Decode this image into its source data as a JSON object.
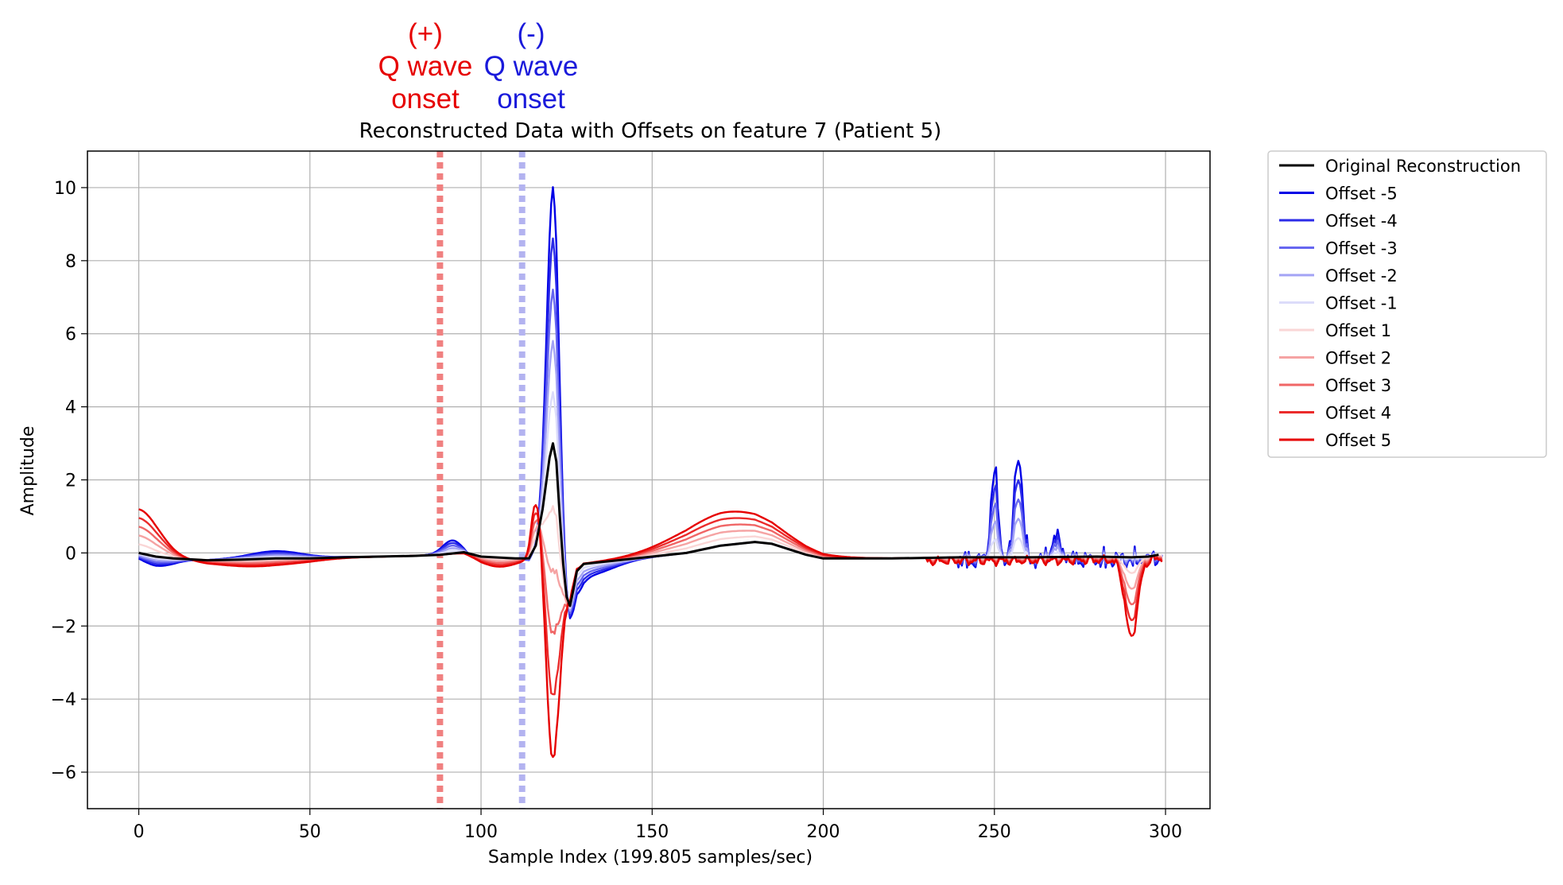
{
  "annotations": {
    "positive": {
      "sign": "(+)",
      "line1": "Q wave",
      "line2": "onset",
      "color": "#e60000"
    },
    "negative": {
      "sign": "(-)",
      "line1": "Q wave",
      "line2": "onset",
      "color": "#1a1adb"
    }
  },
  "chart_data": {
    "type": "line",
    "title": "Reconstructed Data with Offsets on feature 7 (Patient 5)",
    "xlabel": "Sample Index (199.805 samples/sec)",
    "ylabel": "Amplitude",
    "xlim": [
      -15,
      313
    ],
    "ylim": [
      -7,
      11
    ],
    "xticks": [
      0,
      50,
      100,
      150,
      200,
      250,
      300
    ],
    "yticks": [
      -6,
      -4,
      -2,
      0,
      2,
      4,
      6,
      8,
      10
    ],
    "ytick_labels": [
      "−6",
      "−4",
      "−2",
      "0",
      "2",
      "4",
      "6",
      "8",
      "10"
    ],
    "grid": true,
    "legend_position": "outside-right-top",
    "vlines": [
      {
        "x": 88,
        "color": "#f08080",
        "style": "dotted"
      },
      {
        "x": 112,
        "color": "#b3b3f0",
        "style": "dotted"
      }
    ],
    "series": [
      {
        "name": "Original Reconstruction",
        "color": "#000000",
        "offset": 0,
        "points": [
          [
            0,
            0
          ],
          [
            5,
            -0.1
          ],
          [
            10,
            -0.15
          ],
          [
            20,
            -0.2
          ],
          [
            30,
            -0.18
          ],
          [
            40,
            -0.15
          ],
          [
            50,
            -0.15
          ],
          [
            60,
            -0.12
          ],
          [
            70,
            -0.1
          ],
          [
            80,
            -0.08
          ],
          [
            88,
            -0.05
          ],
          [
            95,
            0.02
          ],
          [
            100,
            -0.1
          ],
          [
            110,
            -0.15
          ],
          [
            114,
            -0.15
          ],
          [
            116,
            0.2
          ],
          [
            118,
            1.2
          ],
          [
            120,
            2.6
          ],
          [
            121,
            3.0
          ],
          [
            122,
            2.5
          ],
          [
            123,
            1.0
          ],
          [
            124,
            -0.3
          ],
          [
            125,
            -1.2
          ],
          [
            126,
            -1.45
          ],
          [
            127,
            -1.0
          ],
          [
            128,
            -0.5
          ],
          [
            130,
            -0.3
          ],
          [
            135,
            -0.25
          ],
          [
            140,
            -0.2
          ],
          [
            150,
            -0.1
          ],
          [
            160,
            0
          ],
          [
            170,
            0.2
          ],
          [
            180,
            0.3
          ],
          [
            185,
            0.25
          ],
          [
            190,
            0.1
          ],
          [
            195,
            -0.05
          ],
          [
            200,
            -0.15
          ],
          [
            220,
            -0.15
          ],
          [
            240,
            -0.12
          ],
          [
            260,
            -0.12
          ],
          [
            280,
            -0.1
          ],
          [
            290,
            -0.12
          ],
          [
            295,
            -0.1
          ],
          [
            298,
            -0.05
          ]
        ]
      },
      {
        "name": "Offset -5",
        "color": "#0000e6",
        "offset": -5
      },
      {
        "name": "Offset -4",
        "color": "#2b2be8",
        "offset": -4
      },
      {
        "name": "Offset -3",
        "color": "#6666f0",
        "offset": -3
      },
      {
        "name": "Offset -2",
        "color": "#a3a3f5",
        "offset": -2
      },
      {
        "name": "Offset -1",
        "color": "#dcdcfa",
        "offset": -1
      },
      {
        "name": "Offset 1",
        "color": "#fad6d6",
        "offset": 1
      },
      {
        "name": "Offset 2",
        "color": "#f5a3a3",
        "offset": 2
      },
      {
        "name": "Offset 3",
        "color": "#f06666",
        "offset": 3
      },
      {
        "name": "Offset 4",
        "color": "#eb2b2b",
        "offset": 4
      },
      {
        "name": "Offset 5",
        "color": "#e60000",
        "offset": 5
      }
    ]
  }
}
